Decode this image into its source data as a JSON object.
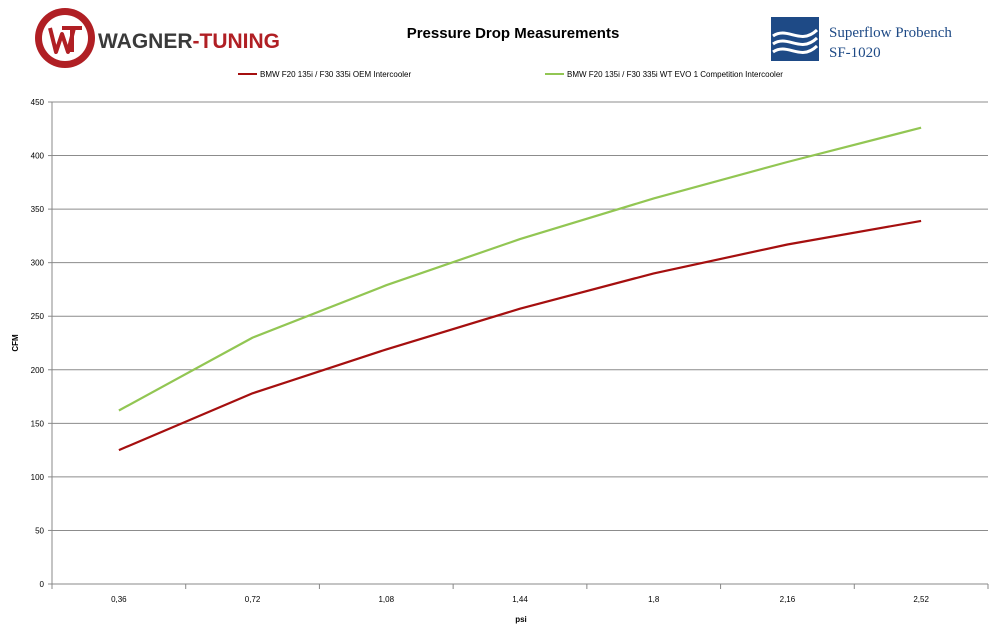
{
  "header": {
    "brand_left": "WAGNER-TUNING",
    "brand_left_part1": "WAGNER",
    "brand_left_part2": "-TUNING",
    "brand_right_line1": "Superflow Probench",
    "brand_right_line2": "SF-1020"
  },
  "colors": {
    "oem": "#a50f0f",
    "evo": "#92c653",
    "grid": "#8c8c8c",
    "brand_red": "#b01f24",
    "brand_blue": "#1e4a86"
  },
  "chart_data": {
    "type": "line",
    "title": "Pressure Drop Measurements",
    "xlabel": "psi",
    "ylabel": "CFM",
    "categories": [
      "0,36",
      "0,72",
      "1,08",
      "1,44",
      "1,8",
      "2,16",
      "2,52"
    ],
    "ylim": [
      0,
      450
    ],
    "yticks": [
      0,
      50,
      100,
      150,
      200,
      250,
      300,
      350,
      400,
      450
    ],
    "grid": true,
    "legend_position": "top",
    "series": [
      {
        "name": "BMW F20 135i / F30 335i OEM Intercooler",
        "color": "#a50f0f",
        "values": [
          125,
          178,
          219,
          257,
          290,
          317,
          339
        ]
      },
      {
        "name": "BMW F20 135i / F30 335i WT EVO 1 Competition Intercooler",
        "color": "#92c653",
        "values": [
          162,
          230,
          279,
          322,
          360,
          394,
          426
        ]
      }
    ]
  }
}
